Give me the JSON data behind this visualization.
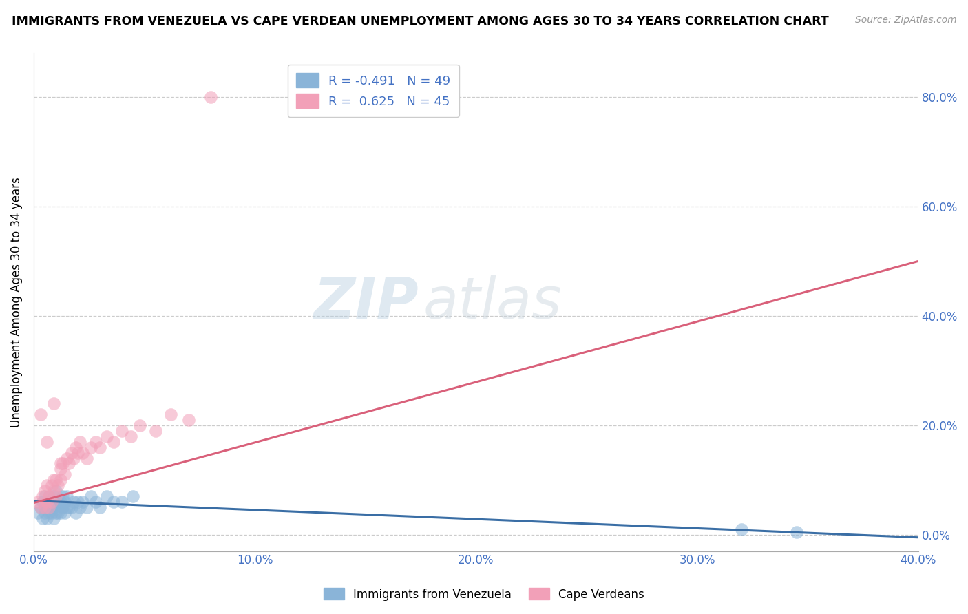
{
  "title": "IMMIGRANTS FROM VENEZUELA VS CAPE VERDEAN UNEMPLOYMENT AMONG AGES 30 TO 34 YEARS CORRELATION CHART",
  "source": "Source: ZipAtlas.com",
  "ylabel": "Unemployment Among Ages 30 to 34 years",
  "xlabel_ticks": [
    "0.0%",
    "10.0%",
    "20.0%",
    "30.0%",
    "40.0%"
  ],
  "xlabel_vals": [
    0.0,
    0.1,
    0.2,
    0.3,
    0.4
  ],
  "ylabel_ticks": [
    "0.0%",
    "20.0%",
    "40.0%",
    "60.0%",
    "80.0%"
  ],
  "ylabel_vals": [
    0.0,
    0.2,
    0.4,
    0.6,
    0.8
  ],
  "xmin": 0.0,
  "xmax": 0.4,
  "ymin": -0.03,
  "ymax": 0.88,
  "blue_R": -0.491,
  "blue_N": 49,
  "pink_R": 0.625,
  "pink_N": 45,
  "blue_color": "#8ab4d8",
  "pink_color": "#f2a0b8",
  "blue_line_color": "#3a6ea5",
  "pink_line_color": "#d9607a",
  "watermark_zip": "ZIP",
  "watermark_atlas": "atlas",
  "legend_label_blue": "Immigrants from Venezuela",
  "legend_label_pink": "Cape Verdeans",
  "blue_scatter_x": [
    0.002,
    0.003,
    0.004,
    0.004,
    0.005,
    0.005,
    0.005,
    0.006,
    0.006,
    0.006,
    0.007,
    0.007,
    0.007,
    0.008,
    0.008,
    0.008,
    0.009,
    0.009,
    0.009,
    0.01,
    0.01,
    0.01,
    0.011,
    0.011,
    0.012,
    0.012,
    0.013,
    0.013,
    0.014,
    0.014,
    0.015,
    0.015,
    0.016,
    0.017,
    0.018,
    0.019,
    0.02,
    0.021,
    0.022,
    0.024,
    0.026,
    0.028,
    0.03,
    0.033,
    0.036,
    0.04,
    0.045,
    0.32,
    0.345
  ],
  "blue_scatter_y": [
    0.04,
    0.05,
    0.03,
    0.06,
    0.04,
    0.05,
    0.07,
    0.03,
    0.05,
    0.06,
    0.04,
    0.06,
    0.07,
    0.04,
    0.05,
    0.06,
    0.03,
    0.05,
    0.07,
    0.04,
    0.06,
    0.08,
    0.04,
    0.06,
    0.04,
    0.06,
    0.05,
    0.07,
    0.04,
    0.06,
    0.05,
    0.07,
    0.05,
    0.05,
    0.06,
    0.04,
    0.06,
    0.05,
    0.06,
    0.05,
    0.07,
    0.06,
    0.05,
    0.07,
    0.06,
    0.06,
    0.07,
    0.01,
    0.005
  ],
  "pink_scatter_x": [
    0.002,
    0.003,
    0.004,
    0.005,
    0.005,
    0.006,
    0.006,
    0.007,
    0.007,
    0.008,
    0.008,
    0.009,
    0.009,
    0.01,
    0.01,
    0.011,
    0.012,
    0.012,
    0.013,
    0.014,
    0.015,
    0.016,
    0.017,
    0.018,
    0.019,
    0.02,
    0.021,
    0.022,
    0.024,
    0.026,
    0.028,
    0.03,
    0.033,
    0.036,
    0.04,
    0.044,
    0.048,
    0.055,
    0.062,
    0.07,
    0.003,
    0.006,
    0.009,
    0.012,
    0.08
  ],
  "pink_scatter_y": [
    0.06,
    0.05,
    0.07,
    0.05,
    0.08,
    0.06,
    0.09,
    0.05,
    0.07,
    0.06,
    0.09,
    0.08,
    0.1,
    0.07,
    0.1,
    0.09,
    0.1,
    0.12,
    0.13,
    0.11,
    0.14,
    0.13,
    0.15,
    0.14,
    0.16,
    0.15,
    0.17,
    0.15,
    0.14,
    0.16,
    0.17,
    0.16,
    0.18,
    0.17,
    0.19,
    0.18,
    0.2,
    0.19,
    0.22,
    0.21,
    0.22,
    0.17,
    0.24,
    0.13,
    0.8
  ],
  "blue_line_x": [
    0.0,
    0.4
  ],
  "blue_line_y": [
    0.062,
    -0.005
  ],
  "pink_line_x": [
    0.0,
    0.4
  ],
  "pink_line_y": [
    0.058,
    0.5
  ]
}
